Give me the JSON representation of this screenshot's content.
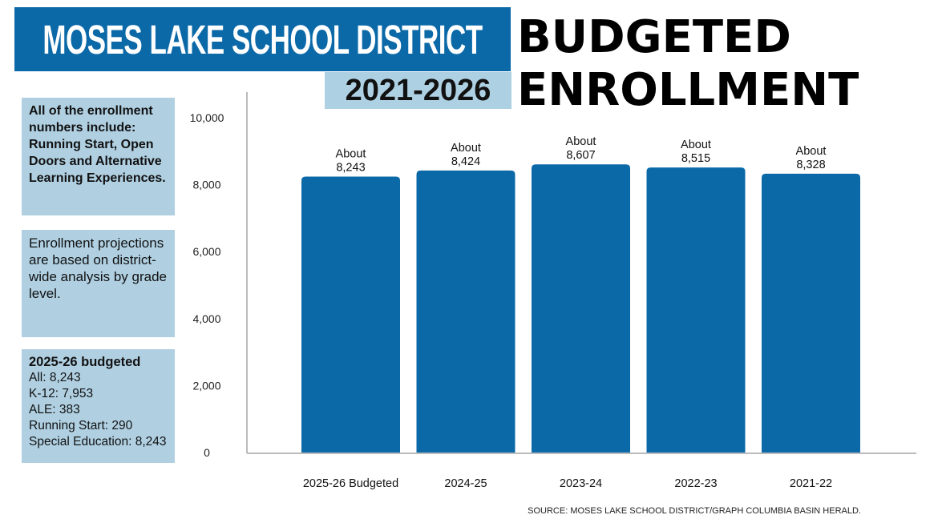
{
  "header": {
    "district": "MOSES LAKE SCHOOL DISTRICT",
    "years": "2021-2026",
    "title_line1": "BUDGETED",
    "title_line2": "ENROLLMENT"
  },
  "notes": {
    "note1": "All of the enrollment numbers include: Running Start, Open Doors and Alternative Learning Experiences.",
    "note2": "Enrollment projections are based on district-wide analysis by grade level.",
    "note3": {
      "heading": "2025-26 budgeted",
      "lines": [
        "All: 8,243",
        "K-12: 7,953",
        "ALE: 383",
        "Running Start: 290",
        "Special Education: 8,243"
      ]
    }
  },
  "source": "SOURCE: MOSES LAKE SCHOOL DISTRICT/GRAPH COLUMBIA BASIN HERALD.",
  "colors": {
    "bar": "#0b69a8",
    "box": "#b0d0e2"
  },
  "chart_data": {
    "type": "bar",
    "title": "Budgeted Enrollment 2021-2026",
    "categories": [
      "2025-26 Budgeted",
      "2024-25",
      "2023-24",
      "2022-23",
      "2021-22"
    ],
    "values": [
      8243,
      8424,
      8607,
      8515,
      8328
    ],
    "data_labels": [
      "About 8,243",
      "About 8,424",
      "About 8,607",
      "About 8,515",
      "About 8,328"
    ],
    "yticks": [
      0,
      2000,
      4000,
      6000,
      8000,
      10000
    ],
    "ytick_labels": [
      "0",
      "2,000",
      "4,000",
      "6,000",
      "8,000",
      "10,000"
    ],
    "ylim": [
      0,
      10000
    ],
    "xlabel": "",
    "ylabel": "",
    "grid": false
  }
}
